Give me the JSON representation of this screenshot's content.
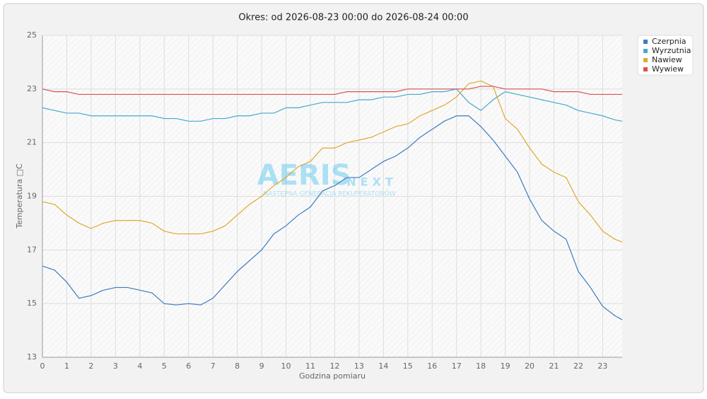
{
  "chart_data": {
    "type": "line",
    "title": "Okres: od 2026-08-23 00:00 do 2026-08-24 00:00",
    "x_label": "Godzina pomiaru",
    "y_label": "Temperatura □C",
    "watermark": [
      "AERIS",
      "NEXT",
      "NASTĘPNA GENERACJA REKUPERATORÓW"
    ],
    "x": [
      0,
      0.5,
      1,
      1.5,
      2,
      2.5,
      3,
      3.5,
      4,
      4.5,
      5,
      5.5,
      6,
      6.5,
      7,
      7.5,
      8,
      8.5,
      9,
      9.5,
      10,
      10.5,
      11,
      11.5,
      12,
      12.5,
      13,
      13.5,
      14,
      14.5,
      15,
      15.5,
      16,
      16.5,
      17,
      17.5,
      18,
      18.5,
      19,
      19.5,
      20,
      20.5,
      21,
      21.5,
      22,
      22.5,
      23,
      23.5,
      23.8
    ],
    "xlim": [
      0,
      23.8
    ],
    "xticks": [
      0,
      1,
      2,
      3,
      4,
      5,
      6,
      7,
      8,
      9,
      10,
      11,
      12,
      13,
      14,
      15,
      16,
      17,
      18,
      19,
      20,
      21,
      22,
      23
    ],
    "ylim": [
      13,
      25
    ],
    "yticks": [
      13,
      15,
      17,
      19,
      21,
      23,
      25
    ],
    "grid": true,
    "legend": "top-right",
    "series": [
      {
        "name": "Czerpnia",
        "color": "#3b7dbf",
        "values": [
          16.4,
          16.25,
          15.8,
          15.2,
          15.3,
          15.5,
          15.6,
          15.6,
          15.5,
          15.4,
          15.0,
          14.95,
          15.0,
          14.95,
          15.2,
          15.7,
          16.2,
          16.6,
          17.0,
          17.6,
          17.9,
          18.3,
          18.6,
          19.2,
          19.4,
          19.7,
          19.7,
          20.0,
          20.3,
          20.5,
          20.8,
          21.2,
          21.5,
          21.8,
          22.0,
          22.0,
          21.6,
          21.1,
          20.5,
          19.9,
          18.9,
          18.1,
          17.7,
          17.4,
          16.2,
          15.6,
          14.9,
          14.55,
          14.4
        ]
      },
      {
        "name": "Wyrzutnia",
        "color": "#44aacc",
        "values": [
          22.3,
          22.2,
          22.1,
          22.1,
          22.0,
          22.0,
          22.0,
          22.0,
          22.0,
          22.0,
          21.9,
          21.9,
          21.8,
          21.8,
          21.9,
          21.9,
          22.0,
          22.0,
          22.1,
          22.1,
          22.3,
          22.3,
          22.4,
          22.5,
          22.5,
          22.5,
          22.6,
          22.6,
          22.7,
          22.7,
          22.8,
          22.8,
          22.9,
          22.9,
          23.0,
          22.5,
          22.2,
          22.6,
          22.9,
          22.8,
          22.7,
          22.6,
          22.5,
          22.4,
          22.2,
          22.1,
          22.0,
          21.85,
          21.8
        ]
      },
      {
        "name": "Nawiew",
        "color": "#e0a82e",
        "values": [
          18.8,
          18.7,
          18.3,
          18.0,
          17.8,
          18.0,
          18.1,
          18.1,
          18.1,
          18.0,
          17.7,
          17.6,
          17.6,
          17.6,
          17.7,
          17.9,
          18.3,
          18.7,
          19.0,
          19.4,
          19.7,
          20.1,
          20.3,
          20.8,
          20.8,
          21.0,
          21.1,
          21.2,
          21.4,
          21.6,
          21.7,
          22.0,
          22.2,
          22.4,
          22.7,
          23.2,
          23.3,
          23.1,
          21.9,
          21.5,
          20.8,
          20.2,
          19.9,
          19.7,
          18.8,
          18.3,
          17.7,
          17.4,
          17.3
        ]
      },
      {
        "name": "Wywiew",
        "color": "#d9534f",
        "values": [
          23.0,
          22.9,
          22.9,
          22.8,
          22.8,
          22.8,
          22.8,
          22.8,
          22.8,
          22.8,
          22.8,
          22.8,
          22.8,
          22.8,
          22.8,
          22.8,
          22.8,
          22.8,
          22.8,
          22.8,
          22.8,
          22.8,
          22.8,
          22.8,
          22.8,
          22.9,
          22.9,
          22.9,
          22.9,
          22.9,
          23.0,
          23.0,
          23.0,
          23.0,
          23.0,
          23.0,
          23.1,
          23.1,
          23.0,
          23.0,
          23.0,
          23.0,
          22.9,
          22.9,
          22.9,
          22.8,
          22.8,
          22.8,
          22.8
        ]
      }
    ]
  }
}
